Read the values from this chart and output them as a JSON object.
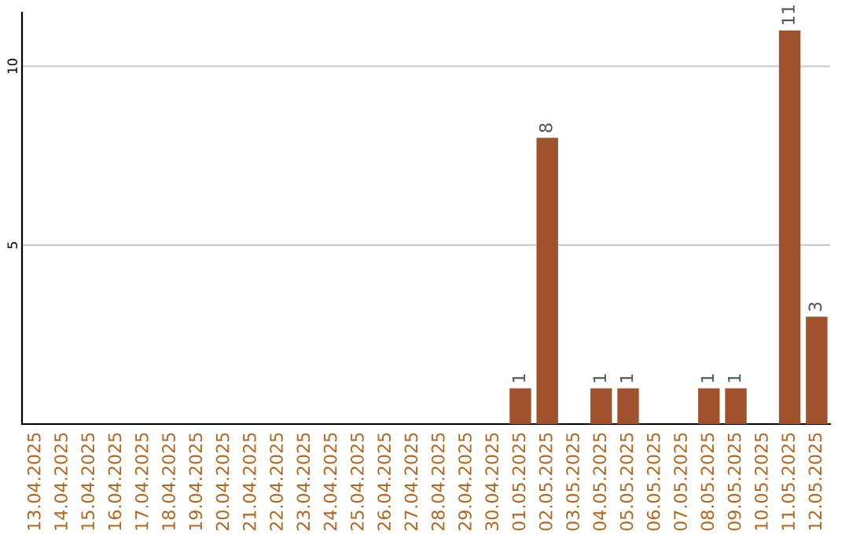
{
  "chart_data": {
    "type": "bar",
    "categories": [
      "13.04.2025",
      "14.04.2025",
      "15.04.2025",
      "16.04.2025",
      "17.04.2025",
      "18.04.2025",
      "19.04.2025",
      "20.04.2025",
      "21.04.2025",
      "22.04.2025",
      "23.04.2025",
      "24.04.2025",
      "25.04.2025",
      "26.04.2025",
      "27.04.2025",
      "28.04.2025",
      "29.04.2025",
      "30.04.2025",
      "01.05.2025",
      "02.05.2025",
      "03.05.2025",
      "04.05.2025",
      "05.05.2025",
      "06.05.2025",
      "07.05.2025",
      "08.05.2025",
      "09.05.2025",
      "10.05.2025",
      "11.05.2025",
      "12.05.2025"
    ],
    "values": [
      0,
      0,
      0,
      0,
      0,
      0,
      0,
      0,
      0,
      0,
      0,
      0,
      0,
      0,
      0,
      0,
      0,
      0,
      1,
      8,
      0,
      1,
      1,
      0,
      0,
      1,
      1,
      0,
      11,
      3
    ],
    "value_labels": [
      null,
      null,
      null,
      null,
      null,
      null,
      null,
      null,
      null,
      null,
      null,
      null,
      null,
      null,
      null,
      null,
      null,
      null,
      "1",
      "8",
      null,
      "1",
      "1",
      null,
      null,
      "1",
      "1",
      null,
      "11",
      "3"
    ],
    "color": "#a0522d",
    "ylim": [
      0,
      11.5
    ],
    "yticks": [
      5,
      10
    ],
    "grid": "y"
  }
}
